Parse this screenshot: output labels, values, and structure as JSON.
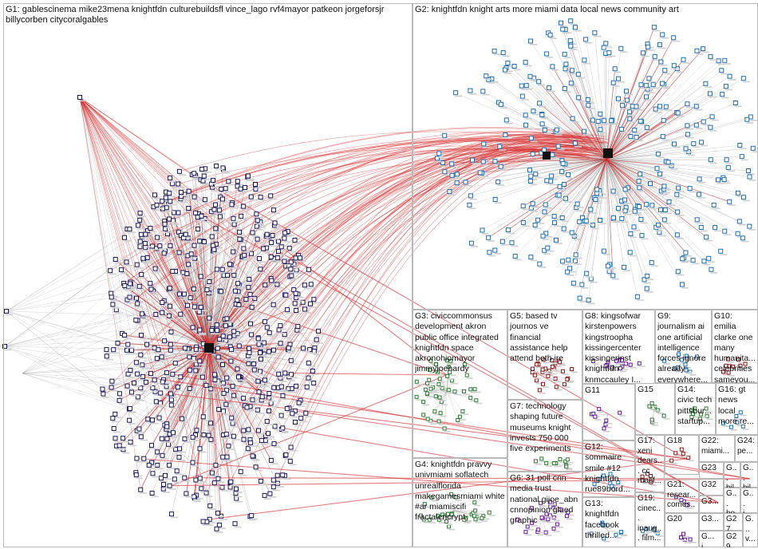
{
  "groups": [
    {
      "id": "G1",
      "label": "G1: gablescinema mike23mena knightfdn culturebuildsfl vince_lago rvf4mayor patkeon jorgeforsjr billycorben citycoralgables"
    },
    {
      "id": "G2",
      "label": "G2: knightfdn knight arts more miami data local news community art"
    },
    {
      "id": "G3",
      "label": "G3: civiccommonsus development akron public office integrated knightfdn space akronohiomayor jimmyjoehardy"
    },
    {
      "id": "G4",
      "label": "G4: knightfdn pravvy univmiami soflatech unrealflorida makegamesmiami white #ar miamiscifi fractalencrypt"
    },
    {
      "id": "G5",
      "label": "G5: based tv journos ve financial assistance help attend both ire"
    },
    {
      "id": "G6",
      "label": "G6: 31 poll cnn media trust national gijoe_abn cnnopinion glued graphic"
    },
    {
      "id": "G7",
      "label": "G7: technology shaping future museums knight invests 750 000 five experiments"
    },
    {
      "id": "G8",
      "label": "G8: kingsofwar kirstenpowers kingstroopha kissingercenter kissingerinst knightfdn knmccauley I..."
    },
    {
      "id": "G9",
      "label": "G9: journalism ai one artificial intelligence forces ignore already everywhere..."
    },
    {
      "id": "G10",
      "label": "G10: emilia clarke one many humanita... celebrities sameyou..."
    },
    {
      "id": "G11",
      "label": "G11"
    },
    {
      "id": "G12",
      "label": "G12: sommaire smile #12 knightfdn rue89bord..."
    },
    {
      "id": "G13",
      "label": "G13: knightfdn facebook thrilled..."
    },
    {
      "id": "G14",
      "label": "G14: civic tech pittsbur... startup..."
    },
    {
      "id": "G15",
      "label": "G15"
    },
    {
      "id": "G16",
      "label": "G16: gt news local more re..."
    },
    {
      "id": "G17",
      "label": "G17: xeni dears... cc macf..."
    },
    {
      "id": "G18",
      "label": "G18"
    },
    {
      "id": "G19",
      "label": "G19: cinec... inaug... film..."
    },
    {
      "id": "G20",
      "label": "G20"
    },
    {
      "id": "G21",
      "label": "G21: resear... comes..."
    },
    {
      "id": "G22",
      "label": "G22: miami..."
    },
    {
      "id": "G23",
      "label": "G23"
    },
    {
      "id": "G24",
      "label": "G24: pe..."
    },
    {
      "id": "G25",
      "label": "G... bil..."
    },
    {
      "id": "G26",
      "label": "G... bil..."
    },
    {
      "id": "G32",
      "label": "G32"
    },
    {
      "id": "G30",
      "label": "G... ho..."
    },
    {
      "id": "G31",
      "label": "G... i..."
    },
    {
      "id": "G33",
      "label": "G3..."
    },
    {
      "id": "G27",
      "label": "G27"
    },
    {
      "id": "G28",
      "label": "G... v..."
    },
    {
      "id": "G34",
      "label": "G3..."
    },
    {
      "id": "G29",
      "label": "G29"
    },
    {
      "id": "G35",
      "label": "G... i..."
    }
  ],
  "colors": {
    "border": "#b9b9b9",
    "edge_red": "#d62728",
    "edge_gray": "#9a9a9a",
    "node_navy": "#1a1a5e",
    "node_blue": "#1f6fb5",
    "node_green": "#2e7d32",
    "node_darkred": "#8b1a1a",
    "node_purple": "#6a1b9a"
  }
}
